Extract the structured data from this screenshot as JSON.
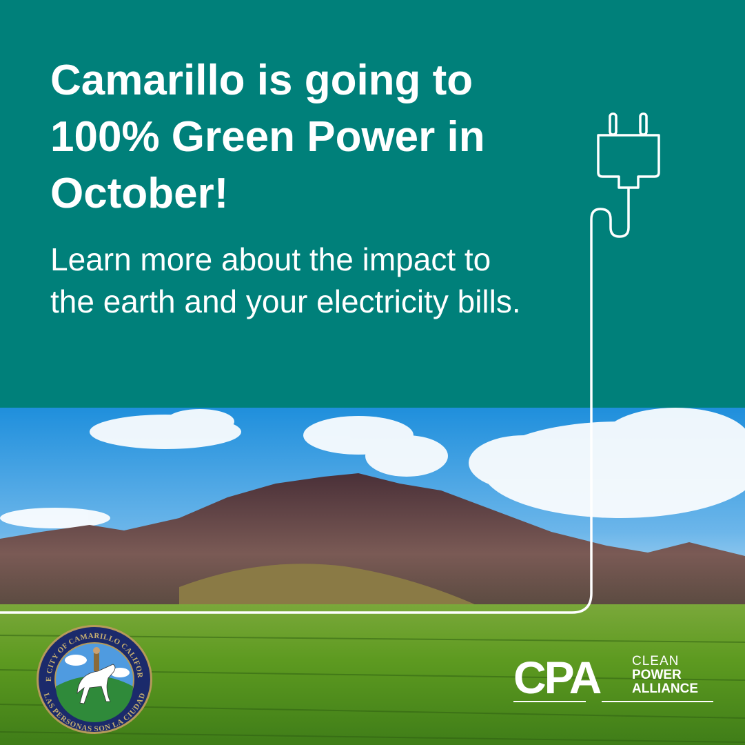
{
  "headline": "Camarillo is going to 100% Green Power in October!",
  "subtext": "Learn more about the impact to the earth and your electricity bills.",
  "colors": {
    "teal": "#00807a",
    "white": "#ffffff",
    "seal_navy": "#1b2a6b",
    "seal_gold": "#b59a5a"
  },
  "seal": {
    "top_text": "THE CITY OF CAMARILLO CALIFORNIA",
    "bottom_text": "LAS PERSONAS SON LA CIUDAD"
  },
  "cpa_logo": {
    "mark": "CPA",
    "line1": "CLEAN",
    "line2": "POWER",
    "line3": "ALLIANCE"
  },
  "icons": [
    "plug-icon",
    "city-seal-logo",
    "cpa-logo"
  ]
}
